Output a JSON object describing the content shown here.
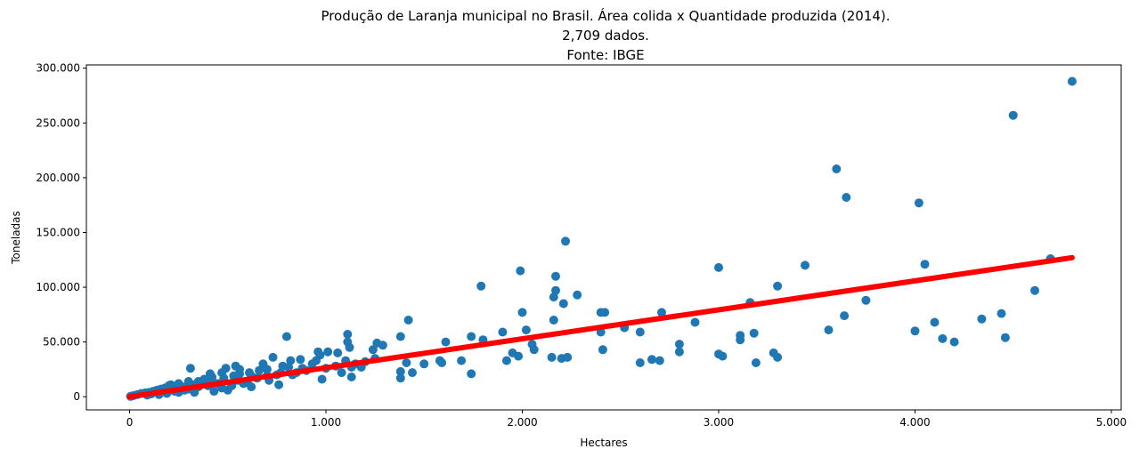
{
  "chart_data": {
    "type": "scatter",
    "title_lines": [
      "Produção de Laranja municipal no Brasil. Área colida x Quantidade produzida (2014).",
      "2,709 dados.",
      "Fonte: IBGE"
    ],
    "xlabel": "Hectares",
    "ylabel": "Toneladas",
    "xlim": [
      -220,
      5050
    ],
    "ylim": [
      -12000,
      303000
    ],
    "x_ticks": [
      {
        "value": 0,
        "label": "0"
      },
      {
        "value": 1000,
        "label": "1.000"
      },
      {
        "value": 2000,
        "label": "2.000"
      },
      {
        "value": 3000,
        "label": "3.000"
      },
      {
        "value": 4000,
        "label": "4.000"
      },
      {
        "value": 5000,
        "label": "5.000"
      }
    ],
    "y_ticks": [
      {
        "value": 0,
        "label": "0"
      },
      {
        "value": 50000,
        "label": "50.000"
      },
      {
        "value": 100000,
        "label": "100.000"
      },
      {
        "value": 150000,
        "label": "150.000"
      },
      {
        "value": 200000,
        "label": "200.000"
      },
      {
        "value": 250000,
        "label": "250.000"
      },
      {
        "value": 300000,
        "label": "300.000"
      }
    ],
    "grid": false,
    "legend": "none",
    "scatter_color": "#1f77b4",
    "fit_color": "#ff0000",
    "fit_line": {
      "x_start": 0,
      "y_start": 0,
      "x_end": 4800,
      "y_end": 127000
    },
    "points": [
      [
        4800,
        288000
      ],
      [
        4500,
        257000
      ],
      [
        3600,
        208000
      ],
      [
        3650,
        182000
      ],
      [
        4020,
        177000
      ],
      [
        2220,
        142000
      ],
      [
        4050,
        121000
      ],
      [
        3440,
        120000
      ],
      [
        3000,
        118000
      ],
      [
        1990,
        115000
      ],
      [
        4690,
        126000
      ],
      [
        2170,
        110000
      ],
      [
        1790,
        101000
      ],
      [
        3300,
        101000
      ],
      [
        2170,
        97000
      ],
      [
        4610,
        97000
      ],
      [
        2280,
        93000
      ],
      [
        2160,
        91000
      ],
      [
        3160,
        86000
      ],
      [
        2210,
        85000
      ],
      [
        3750,
        88000
      ],
      [
        2420,
        77000
      ],
      [
        2400,
        77000
      ],
      [
        2710,
        77000
      ],
      [
        3640,
        74000
      ],
      [
        2000,
        77000
      ],
      [
        2160,
        70000
      ],
      [
        1420,
        70000
      ],
      [
        4340,
        71000
      ],
      [
        4100,
        68000
      ],
      [
        2880,
        68000
      ],
      [
        3560,
        61000
      ],
      [
        4000,
        60000
      ],
      [
        2020,
        61000
      ],
      [
        2520,
        63000
      ],
      [
        2400,
        59000
      ],
      [
        2600,
        59000
      ],
      [
        3110,
        56000
      ],
      [
        3180,
        58000
      ],
      [
        3110,
        52000
      ],
      [
        4140,
        53000
      ],
      [
        4200,
        50000
      ],
      [
        4460,
        54000
      ],
      [
        4440,
        76000
      ],
      [
        1380,
        55000
      ],
      [
        1110,
        57000
      ],
      [
        800,
        55000
      ],
      [
        1740,
        55000
      ],
      [
        1800,
        52000
      ],
      [
        1900,
        59000
      ],
      [
        2050,
        48000
      ],
      [
        2060,
        43000
      ],
      [
        2800,
        48000
      ],
      [
        2800,
        41000
      ],
      [
        2410,
        43000
      ],
      [
        3000,
        39000
      ],
      [
        3020,
        37000
      ],
      [
        3300,
        36000
      ],
      [
        3280,
        40000
      ],
      [
        3190,
        31000
      ],
      [
        2600,
        31000
      ],
      [
        2660,
        34000
      ],
      [
        2700,
        33000
      ],
      [
        2150,
        36000
      ],
      [
        2200,
        35000
      ],
      [
        2230,
        36000
      ],
      [
        1980,
        37000
      ],
      [
        1950,
        40000
      ],
      [
        1920,
        33000
      ],
      [
        1580,
        33000
      ],
      [
        1590,
        31000
      ],
      [
        1500,
        30000
      ],
      [
        1410,
        31000
      ],
      [
        1380,
        23000
      ],
      [
        1380,
        17000
      ],
      [
        1440,
        22000
      ],
      [
        1740,
        21000
      ],
      [
        1690,
        33000
      ],
      [
        1610,
        50000
      ],
      [
        1290,
        47000
      ],
      [
        1260,
        49000
      ],
      [
        1240,
        43000
      ],
      [
        1110,
        50000
      ],
      [
        1120,
        45000
      ],
      [
        1060,
        40000
      ],
      [
        970,
        38000
      ],
      [
        960,
        41000
      ],
      [
        1010,
        41000
      ],
      [
        950,
        33000
      ],
      [
        1100,
        33000
      ],
      [
        1130,
        27000
      ],
      [
        1130,
        18000
      ],
      [
        980,
        16000
      ],
      [
        870,
        34000
      ],
      [
        820,
        33000
      ],
      [
        810,
        27000
      ],
      [
        770,
        22000
      ],
      [
        730,
        36000
      ],
      [
        680,
        30000
      ],
      [
        700,
        25000
      ],
      [
        760,
        11000
      ],
      [
        620,
        19000
      ],
      [
        560,
        25000
      ],
      [
        540,
        28000
      ],
      [
        490,
        26000
      ],
      [
        470,
        22000
      ],
      [
        410,
        21000
      ],
      [
        310,
        26000
      ],
      [
        420,
        18000
      ],
      [
        380,
        16000
      ],
      [
        350,
        14000
      ],
      [
        300,
        14000
      ],
      [
        250,
        12000
      ],
      [
        210,
        11000
      ],
      [
        200,
        10000
      ],
      [
        180,
        8000
      ],
      [
        160,
        7000
      ],
      [
        140,
        6000
      ],
      [
        120,
        5000
      ],
      [
        100,
        4000
      ],
      [
        80,
        3500
      ],
      [
        60,
        3000
      ],
      [
        40,
        2000
      ],
      [
        20,
        1000
      ],
      [
        10,
        500
      ],
      [
        5,
        300
      ],
      [
        150,
        2000
      ],
      [
        250,
        4000
      ],
      [
        300,
        7000
      ],
      [
        350,
        9000
      ],
      [
        400,
        10000
      ],
      [
        450,
        12000
      ],
      [
        500,
        6000
      ],
      [
        550,
        15000
      ],
      [
        600,
        13000
      ],
      [
        650,
        17000
      ],
      [
        700,
        19000
      ],
      [
        750,
        20000
      ],
      [
        850,
        22000
      ],
      [
        900,
        24000
      ],
      [
        1000,
        26000
      ],
      [
        1050,
        28000
      ],
      [
        1150,
        30000
      ],
      [
        1200,
        32000
      ],
      [
        1250,
        35000
      ],
      [
        430,
        5000
      ],
      [
        470,
        8000
      ],
      [
        520,
        10000
      ],
      [
        580,
        12000
      ],
      [
        620,
        9000
      ],
      [
        330,
        4000
      ],
      [
        280,
        6000
      ],
      [
        230,
        5000
      ],
      [
        190,
        3000
      ],
      [
        90,
        1500
      ],
      [
        110,
        2500
      ],
      [
        130,
        4500
      ],
      [
        170,
        5500
      ],
      [
        220,
        8000
      ],
      [
        270,
        9000
      ],
      [
        320,
        11000
      ],
      [
        370,
        13000
      ],
      [
        420,
        15000
      ],
      [
        480,
        17000
      ],
      [
        530,
        19000
      ],
      [
        560,
        21000
      ],
      [
        610,
        22000
      ],
      [
        660,
        24000
      ],
      [
        710,
        15000
      ],
      [
        780,
        28000
      ],
      [
        830,
        20000
      ],
      [
        880,
        26000
      ],
      [
        930,
        30000
      ],
      [
        1080,
        22000
      ],
      [
        1180,
        27000
      ]
    ]
  }
}
